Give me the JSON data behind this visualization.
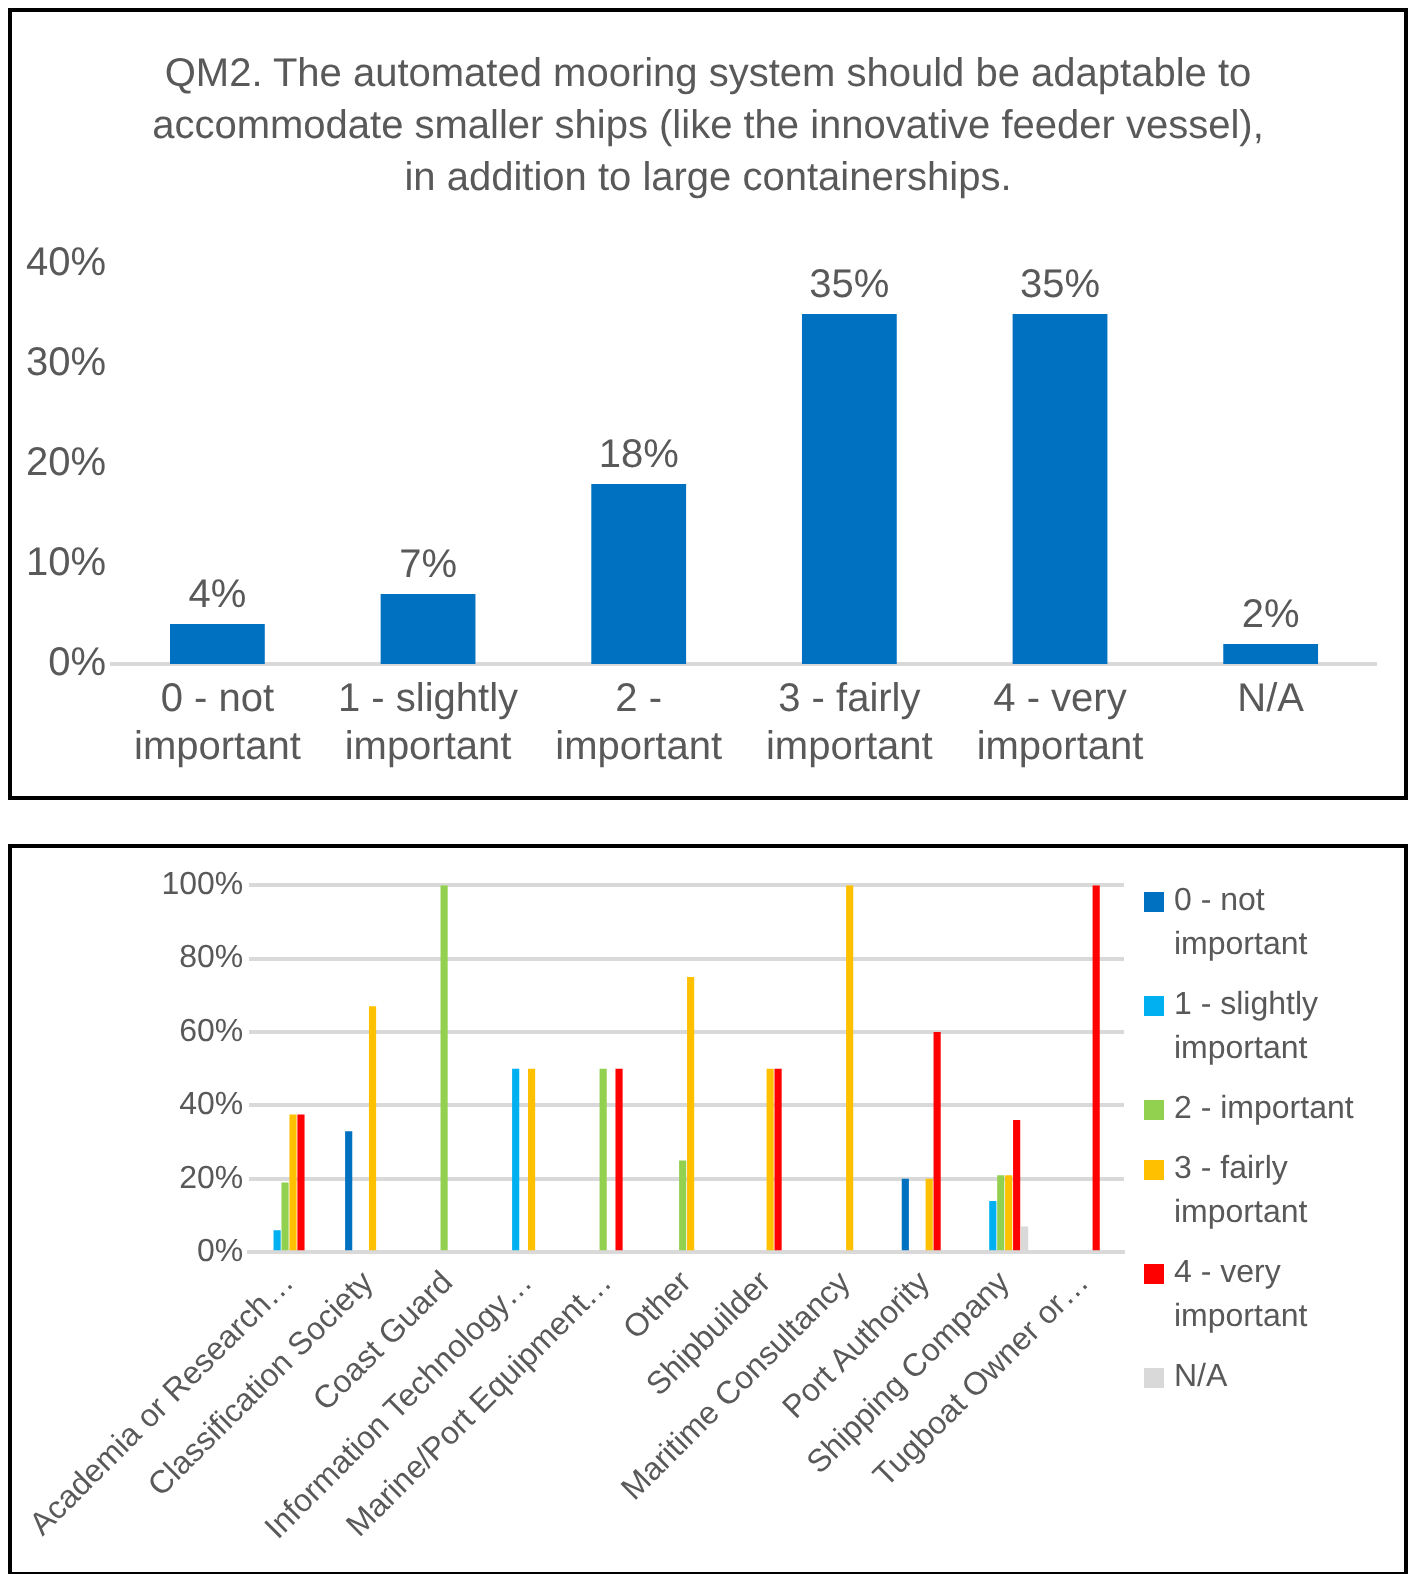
{
  "chart_data": [
    {
      "type": "bar",
      "title": "QM2. The automated mooring system should be adaptable to accommodate smaller ships (like the innovative feeder vessel), in addition to large containerships.",
      "categories": [
        "0 - not important",
        "1 - slightly important",
        "2 - important",
        "3 - fairly important",
        "4 - very important",
        "N/A"
      ],
      "values": [
        4,
        7,
        18,
        35,
        35,
        2
      ],
      "color": "#0070c0",
      "value_labels": [
        "4%",
        "7%",
        "18%",
        "35%",
        "35%",
        "2%"
      ],
      "ylim": [
        0,
        40
      ],
      "yticks": [
        {
          "value": 0,
          "label": "0%"
        },
        {
          "value": 10,
          "label": "10%"
        },
        {
          "value": 20,
          "label": "20%"
        },
        {
          "value": 30,
          "label": "30%"
        },
        {
          "value": 40,
          "label": "40%"
        }
      ],
      "grid": false,
      "legend": false
    },
    {
      "type": "bar",
      "categories": [
        "Academia or Research…",
        "Classification Society",
        "Coast Guard",
        "Information Technology…",
        "Marine/Port Equipment…",
        "Other",
        "Shipbuilder",
        "Maritime Consultancy",
        "Port Authority",
        "Shipping Company",
        "Tugboat Owner or…"
      ],
      "series": [
        {
          "name": "0 - not important",
          "color": "#0070c0",
          "values": [
            0,
            33,
            0,
            0,
            0,
            0,
            0,
            0,
            20,
            0,
            0
          ]
        },
        {
          "name": "1 - slightly important",
          "color": "#00b0f0",
          "values": [
            6,
            0,
            0,
            50,
            0,
            0,
            0,
            0,
            0,
            14,
            0
          ]
        },
        {
          "name": "2 - important",
          "color": "#92d050",
          "values": [
            19,
            0,
            100,
            0,
            50,
            25,
            0,
            0,
            0,
            21,
            0
          ]
        },
        {
          "name": "3 - fairly important",
          "color": "#ffc000",
          "values": [
            37.5,
            67,
            0,
            50,
            0,
            75,
            50,
            100,
            20,
            21,
            0
          ]
        },
        {
          "name": "4 - very important",
          "color": "#ff0000",
          "values": [
            37.5,
            0,
            0,
            0,
            50,
            0,
            50,
            0,
            60,
            36,
            100
          ]
        },
        {
          "name": "N/A",
          "color": "#d9d9d9",
          "values": [
            0,
            0,
            0,
            0,
            0,
            0,
            0,
            0,
            0,
            7,
            0
          ]
        }
      ],
      "ylim": [
        0,
        100
      ],
      "yticks": [
        {
          "value": 0,
          "label": "0%"
        },
        {
          "value": 20,
          "label": "20%"
        },
        {
          "value": 40,
          "label": "40%"
        },
        {
          "value": 60,
          "label": "60%"
        },
        {
          "value": 80,
          "label": "80%"
        },
        {
          "value": 100,
          "label": "100%"
        }
      ],
      "grid": "y",
      "legend": "right"
    }
  ]
}
